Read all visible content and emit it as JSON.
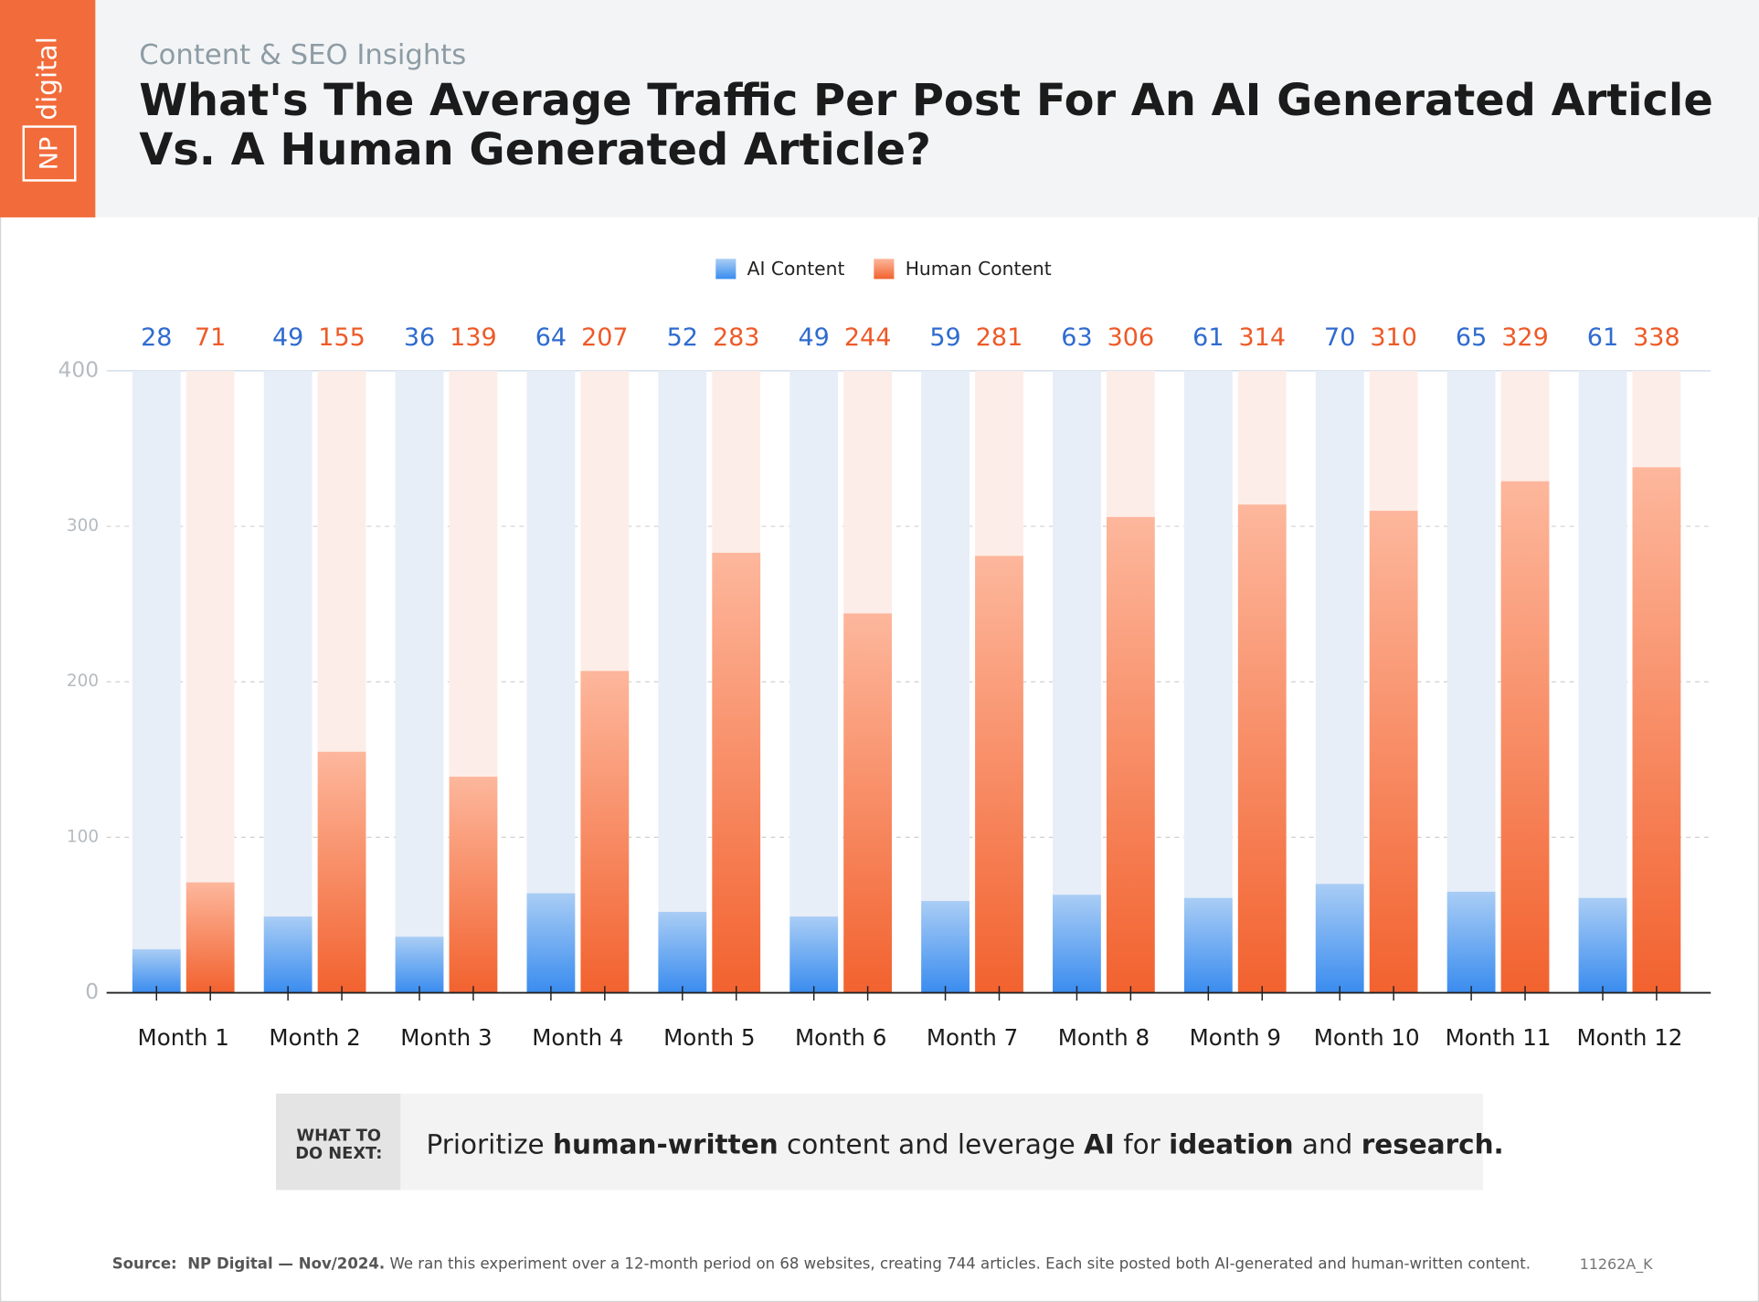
{
  "logo": {
    "mark": "NP",
    "word": "digital"
  },
  "header": {
    "kicker": "Content & SEO Insights"
  },
  "chart_data": {
    "type": "bar",
    "title": [
      "What's The Average Traffic Per Post For An AI Generated Article",
      "Vs. A Human Generated Article?"
    ],
    "categories": [
      "Month 1",
      "Month 2",
      "Month 3",
      "Month 4",
      "Month 5",
      "Month 6",
      "Month 7",
      "Month 8",
      "Month 9",
      "Month 10",
      "Month 11",
      "Month 12"
    ],
    "series": [
      {
        "name": "AI Content",
        "color": "#3b8ef0",
        "values": [
          28,
          49,
          36,
          64,
          52,
          49,
          59,
          63,
          61,
          70,
          65,
          61
        ]
      },
      {
        "name": "Human Content",
        "color": "#f26434",
        "values": [
          71,
          155,
          139,
          207,
          283,
          244,
          281,
          306,
          314,
          310,
          329,
          338
        ]
      }
    ],
    "ylim": [
      0,
      400
    ],
    "yticks": [
      0,
      100,
      200,
      300,
      400
    ],
    "grid": true,
    "legend": "top"
  },
  "takeaway": {
    "label": [
      "WHAT TO",
      "DO NEXT:"
    ],
    "text": [
      {
        "text": "Prioritize ",
        "bold": false
      },
      {
        "text": "human-written",
        "bold": true
      },
      {
        "text": " content and leverage ",
        "bold": false
      },
      {
        "text": "AI",
        "bold": true
      },
      {
        "text": " for ",
        "bold": false
      },
      {
        "text": "ideation",
        "bold": true
      },
      {
        "text": " and ",
        "bold": false
      },
      {
        "text": "research.",
        "bold": true
      }
    ]
  },
  "footer": {
    "source": [
      {
        "text": "Source:  NP Digital — Nov/2024.",
        "bold": true
      },
      {
        "text": " We ran this experiment over a 12-month period on 68 websites, creating 744 articles. Each site posted both AI-generated and human-written content.",
        "bold": false
      }
    ],
    "code": "11262A_K"
  }
}
